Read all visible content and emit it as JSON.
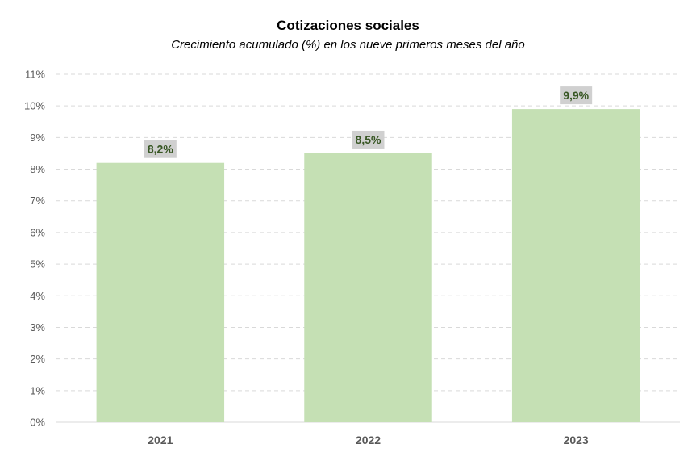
{
  "chart_data": {
    "type": "bar",
    "title": "Cotizaciones sociales",
    "subtitle": "Crecimiento acumulado (%) en los nueve primeros meses del año",
    "categories": [
      "2021",
      "2022",
      "2023"
    ],
    "values": [
      8.2,
      8.5,
      9.9
    ],
    "data_labels": [
      "8,2%",
      "8,5%",
      "9,9%"
    ],
    "ylim": [
      0,
      11
    ],
    "yticks": [
      0,
      1,
      2,
      3,
      4,
      5,
      6,
      7,
      8,
      9,
      10,
      11
    ],
    "ytick_labels": [
      "0%",
      "1%",
      "2%",
      "3%",
      "4%",
      "5%",
      "6%",
      "7%",
      "8%",
      "9%",
      "10%",
      "11%"
    ],
    "xlabel": "",
    "ylabel": "",
    "grid": true,
    "legend": "none",
    "colors": {
      "bar": "#c5e0b4",
      "data_label_bg": "#d0d0d0",
      "data_label_text": "#375623",
      "axis_text": "#595959",
      "grid": "#d9d9d9"
    }
  }
}
